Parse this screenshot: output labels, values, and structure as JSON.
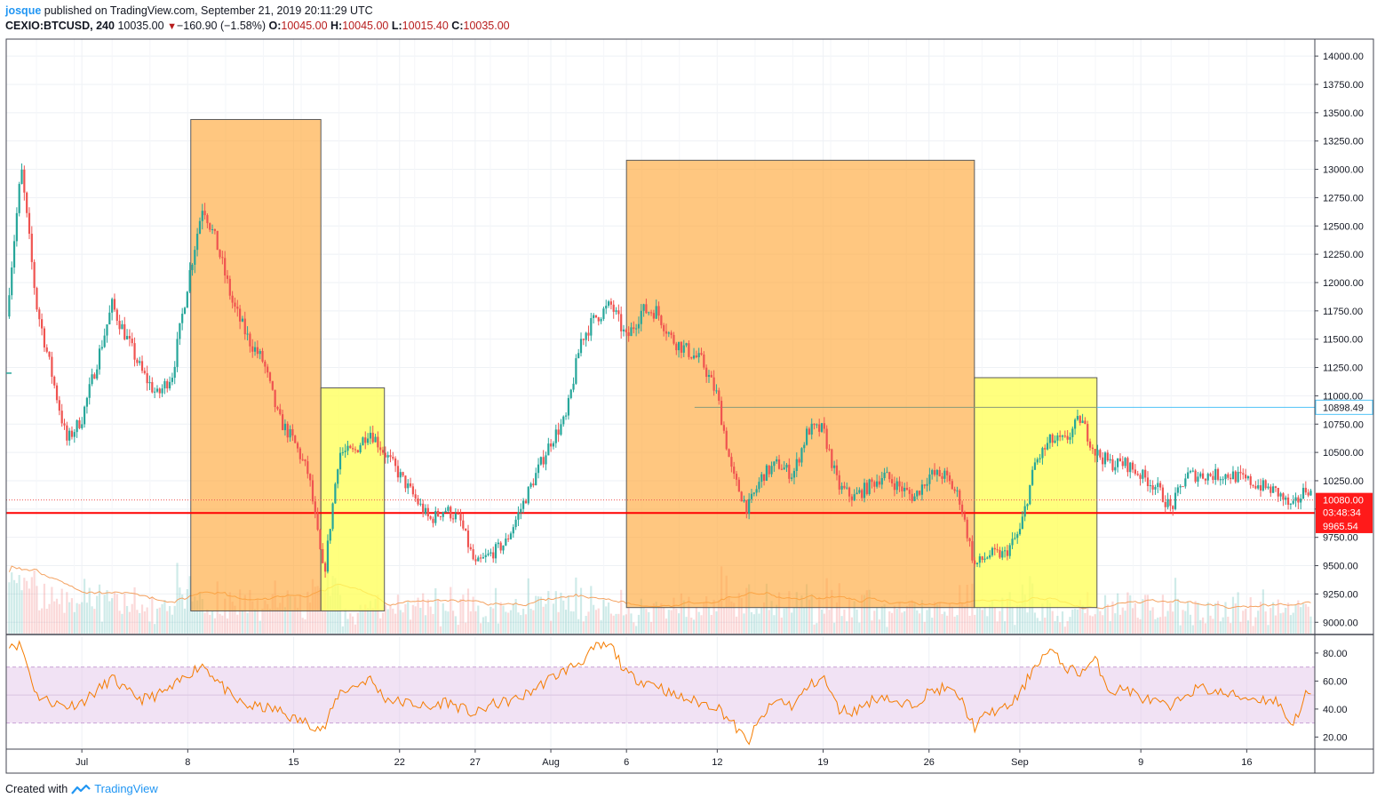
{
  "header": {
    "author": "josque",
    "published_text": "published on TradingView.com, September 21, 2019 20:11:29 UTC",
    "symbol": "CEXIO:BTCUSD, 240",
    "last": "10035.00",
    "change": "−160.90 (−1.58%)",
    "o_label": "O:",
    "o_value": "10045.00",
    "h_label": "H:",
    "h_value": "10045.00",
    "l_label": "L:",
    "l_value": "10015.40",
    "c_label": "C:",
    "c_value": "10035.00"
  },
  "footer": {
    "created_with": "Created with",
    "brand": "TradingView"
  },
  "colors": {
    "up": "#26a69a",
    "down": "#ef5350",
    "orange_box": "#ffb74d",
    "yellow_box": "#ffff66",
    "support_line": "#ff0000",
    "resistance_line": "#4fc3f7",
    "rsi_line": "#f57c00",
    "rsi_band": "#e1bee7"
  },
  "chart_data": [
    {
      "type": "candlestick",
      "ylim": [
        8900,
        14150
      ],
      "y_ticks": [
        "9000.00",
        "9250.00",
        "9500.00",
        "9750.00",
        "10000.00",
        "10250.00",
        "10500.00",
        "10750.00",
        "11000.00",
        "11250.00",
        "11500.00",
        "11750.00",
        "12000.00",
        "12250.00",
        "12500.00",
        "12750.00",
        "13000.00",
        "13250.00",
        "13500.00",
        "13750.00",
        "14000.00"
      ],
      "x_ticks": [
        {
          "label": "Jul",
          "day": 1
        },
        {
          "label": "8",
          "day": 8
        },
        {
          "label": "15",
          "day": 15
        },
        {
          "label": "22",
          "day": 22
        },
        {
          "label": "27",
          "day": 27
        },
        {
          "label": "Aug",
          "day": 32
        },
        {
          "label": "6",
          "day": 37
        },
        {
          "label": "12",
          "day": 43
        },
        {
          "label": "19",
          "day": 50
        },
        {
          "label": "26",
          "day": 57
        },
        {
          "label": "Sep",
          "day": 63
        },
        {
          "label": "9",
          "day": 71
        },
        {
          "label": "16",
          "day": 78
        }
      ],
      "xlim_days": [
        -4.0,
        82.5
      ],
      "daily_close": [
        [
          -4,
          11700
        ],
        [
          -3,
          13000
        ],
        [
          -2,
          11800
        ],
        [
          -1,
          11200
        ],
        [
          0,
          10600
        ],
        [
          1,
          10800
        ],
        [
          2,
          11300
        ],
        [
          3,
          11800
        ],
        [
          4,
          11500
        ],
        [
          5,
          11200
        ],
        [
          6,
          11000
        ],
        [
          7,
          11200
        ],
        [
          8,
          12000
        ],
        [
          9,
          12700
        ],
        [
          10,
          12300
        ],
        [
          11,
          11800
        ],
        [
          12,
          11500
        ],
        [
          13,
          11300
        ],
        [
          14,
          10800
        ],
        [
          15,
          10600
        ],
        [
          16,
          10300
        ],
        [
          17,
          9400
        ],
        [
          18,
          10500
        ],
        [
          19,
          10500
        ],
        [
          20,
          10700
        ],
        [
          21,
          10500
        ],
        [
          22,
          10300
        ],
        [
          23,
          10100
        ],
        [
          24,
          9900
        ],
        [
          25,
          10000
        ],
        [
          26,
          9900
        ],
        [
          27,
          9500
        ],
        [
          28,
          9600
        ],
        [
          29,
          9700
        ],
        [
          30,
          10000
        ],
        [
          31,
          10300
        ],
        [
          32,
          10600
        ],
        [
          33,
          10800
        ],
        [
          34,
          11500
        ],
        [
          35,
          11700
        ],
        [
          36,
          11800
        ],
        [
          37,
          11500
        ],
        [
          38,
          11750
        ],
        [
          39,
          11750
        ],
        [
          40,
          11500
        ],
        [
          41,
          11400
        ],
        [
          42,
          11300
        ],
        [
          43,
          11000
        ],
        [
          44,
          10300
        ],
        [
          45,
          10000
        ],
        [
          46,
          10300
        ],
        [
          47,
          10400
        ],
        [
          48,
          10300
        ],
        [
          49,
          10700
        ],
        [
          50,
          10700
        ],
        [
          51,
          10200
        ],
        [
          52,
          10100
        ],
        [
          53,
          10200
        ],
        [
          54,
          10300
        ],
        [
          55,
          10200
        ],
        [
          56,
          10100
        ],
        [
          57,
          10300
        ],
        [
          58,
          10300
        ],
        [
          59,
          10100
        ],
        [
          60,
          9500
        ],
        [
          61,
          9600
        ],
        [
          62,
          9600
        ],
        [
          63,
          9800
        ],
        [
          64,
          10400
        ],
        [
          65,
          10600
        ],
        [
          66,
          10600
        ],
        [
          67,
          10800
        ],
        [
          68,
          10500
        ],
        [
          69,
          10400
        ],
        [
          70,
          10400
        ],
        [
          71,
          10300
        ],
        [
          72,
          10200
        ],
        [
          73,
          10000
        ],
        [
          74,
          10300
        ],
        [
          75,
          10300
        ],
        [
          76,
          10300
        ],
        [
          77,
          10300
        ],
        [
          78,
          10250
        ],
        [
          79,
          10200
        ],
        [
          80,
          10150
        ],
        [
          81,
          10000
        ],
        [
          82,
          10200
        ],
        [
          82.6,
          10035
        ]
      ],
      "annotations": [
        {
          "kind": "box",
          "color": "orange",
          "day_start": 8.2,
          "day_end": 16.8,
          "price_high": 13440,
          "price_low": 9100
        },
        {
          "kind": "box",
          "color": "yellow",
          "day_start": 16.8,
          "day_end": 21.0,
          "price_high": 11070,
          "price_low": 9100
        },
        {
          "kind": "box",
          "color": "orange",
          "day_start": 37.0,
          "day_end": 60.0,
          "price_high": 13080,
          "price_low": 9130
        },
        {
          "kind": "box",
          "color": "yellow",
          "day_start": 60.0,
          "day_end": 68.1,
          "price_high": 11160,
          "price_low": 9130
        },
        {
          "kind": "hline",
          "color": "red",
          "price": 9965.54
        },
        {
          "kind": "hline",
          "color": "blue",
          "price": 10898.49,
          "day_start": 68.1
        },
        {
          "kind": "trendline",
          "color": "gray",
          "price": 10898.49,
          "day_start": 41.5,
          "day_end": 68.1
        }
      ],
      "price_labels": [
        {
          "text": "10898.49",
          "price": 10898.49,
          "style": "blue"
        },
        {
          "text": "10080.00",
          "price": 10080.0,
          "style": "red"
        },
        {
          "text": "03:48:34",
          "price": 9970,
          "style": "red"
        },
        {
          "text": "9965.54",
          "price": 9850,
          "style": "red"
        }
      ],
      "volume_ma": "orange line over translucent volume bars"
    },
    {
      "type": "line",
      "series": [
        {
          "values_note": "RSI(14)"
        }
      ],
      "ylim": [
        12,
        92
      ],
      "y_ticks": [
        "20.00",
        "40.00",
        "60.00",
        "80.00"
      ],
      "band": [
        30,
        70
      ],
      "rsi_daily": [
        [
          -4,
          88
        ],
        [
          -3,
          85
        ],
        [
          -2,
          50
        ],
        [
          -1,
          45
        ],
        [
          0,
          42
        ],
        [
          1,
          45
        ],
        [
          2,
          53
        ],
        [
          3,
          62
        ],
        [
          4,
          52
        ],
        [
          5,
          47
        ],
        [
          6,
          50
        ],
        [
          7,
          55
        ],
        [
          8,
          65
        ],
        [
          9,
          72
        ],
        [
          10,
          60
        ],
        [
          11,
          47
        ],
        [
          12,
          42
        ],
        [
          13,
          41
        ],
        [
          14,
          39
        ],
        [
          15,
          33
        ],
        [
          16,
          30
        ],
        [
          17,
          25
        ],
        [
          18,
          52
        ],
        [
          19,
          56
        ],
        [
          20,
          62
        ],
        [
          21,
          48
        ],
        [
          22,
          45
        ],
        [
          23,
          44
        ],
        [
          24,
          40
        ],
        [
          25,
          46
        ],
        [
          26,
          41
        ],
        [
          27,
          36
        ],
        [
          28,
          43
        ],
        [
          29,
          45
        ],
        [
          30,
          48
        ],
        [
          31,
          55
        ],
        [
          32,
          62
        ],
        [
          33,
          68
        ],
        [
          34,
          74
        ],
        [
          35,
          84
        ],
        [
          36,
          85
        ],
        [
          37,
          65
        ],
        [
          38,
          60
        ],
        [
          39,
          58
        ],
        [
          40,
          50
        ],
        [
          41,
          47
        ],
        [
          42,
          44
        ],
        [
          43,
          42
        ],
        [
          44,
          30
        ],
        [
          45,
          16
        ],
        [
          46,
          35
        ],
        [
          47,
          47
        ],
        [
          48,
          42
        ],
        [
          49,
          56
        ],
        [
          50,
          63
        ],
        [
          51,
          40
        ],
        [
          52,
          38
        ],
        [
          53,
          45
        ],
        [
          54,
          50
        ],
        [
          55,
          42
        ],
        [
          56,
          44
        ],
        [
          57,
          52
        ],
        [
          58,
          55
        ],
        [
          59,
          49
        ],
        [
          60,
          27
        ],
        [
          61,
          38
        ],
        [
          62,
          40
        ],
        [
          63,
          50
        ],
        [
          64,
          72
        ],
        [
          65,
          82
        ],
        [
          66,
          70
        ],
        [
          67,
          66
        ],
        [
          68,
          75
        ],
        [
          69,
          52
        ],
        [
          70,
          55
        ],
        [
          71,
          48
        ],
        [
          72,
          45
        ],
        [
          73,
          40
        ],
        [
          74,
          52
        ],
        [
          75,
          55
        ],
        [
          76,
          52
        ],
        [
          77,
          50
        ],
        [
          78,
          48
        ],
        [
          79,
          47
        ],
        [
          80,
          46
        ],
        [
          81,
          28
        ],
        [
          82,
          52
        ],
        [
          82.6,
          47
        ]
      ]
    }
  ]
}
